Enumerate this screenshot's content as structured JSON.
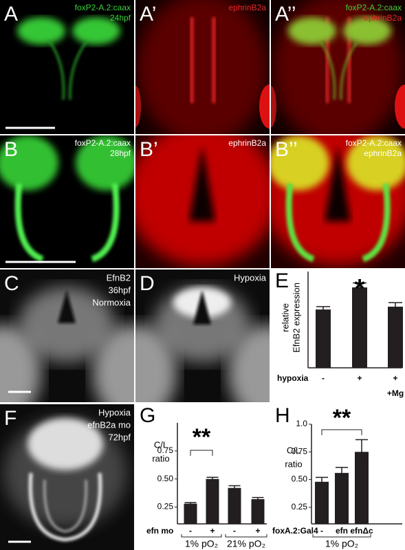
{
  "panels": [
    {
      "letter": "A",
      "text": [
        "foxP2-A.2:caax",
        "24hpf"
      ]
    },
    {
      "letter": "A’",
      "text": [
        "ephrinB2a"
      ]
    },
    {
      "letter": "A’’",
      "text": [
        "foxP2-A.2:caax",
        "ephrinB2a"
      ]
    },
    {
      "letter": "B",
      "text": [
        "foxP2-A.2:caax",
        "28hpf"
      ]
    },
    {
      "letter": "B’",
      "text": [
        "ephrinB2a"
      ]
    },
    {
      "letter": "B’’",
      "text": [
        "foxP2-A.2:caax",
        "ephrinB2a"
      ]
    },
    {
      "letter": "C",
      "text": [
        "EfnB2",
        "36hpf",
        "Normoxia"
      ]
    },
    {
      "letter": "D",
      "text": [
        "Hypoxia"
      ]
    },
    {
      "letter": "F",
      "text": [
        "Hypoxia",
        "efnB2a mo",
        "72hpf"
      ]
    }
  ],
  "chart_data": [
    {
      "type": "bar",
      "label": "E",
      "ylabel": [
        "relative",
        "EfnB2 expression"
      ],
      "xlabel": "hypoxia",
      "categories": [
        "-",
        "+",
        "+"
      ],
      "sublabels": [
        null,
        null,
        "+Mg"
      ],
      "values": [
        1.03,
        1.42,
        1.08
      ],
      "errors": [
        0.05,
        0.08,
        0.07
      ],
      "color": "#231f20",
      "ylim": [
        0,
        1.7
      ],
      "significance": {
        "label": "*",
        "between": [
          1
        ]
      }
    },
    {
      "type": "bar",
      "label": "G",
      "ylabel": [
        "C/L",
        "ratio"
      ],
      "xlabel": "efn mo",
      "categories": [
        "-",
        "+",
        "-",
        "+"
      ],
      "values": [
        0.28,
        0.5,
        0.42,
        0.32
      ],
      "errors": [
        0.01,
        0.015,
        0.02,
        0.015
      ],
      "color": "#231f20",
      "ylim": [
        0.1,
        1.0
      ],
      "yticks": [
        0.25,
        {
          "value": 0.5,
          "label": "0.50"
        },
        0.75
      ],
      "groups": [
        "1% pO₂",
        "21% pO₂"
      ],
      "significance": {
        "label": "**",
        "between": [
          0,
          1
        ]
      }
    },
    {
      "type": "bar",
      "label": "H",
      "ylabel": [
        "C/L",
        "ratio"
      ],
      "xlabel": "foxA.2:Gal4",
      "categories": [
        "-",
        "efn",
        "efnΔc"
      ],
      "values": [
        0.48,
        0.56,
        0.75
      ],
      "errors": [
        0.04,
        0.05,
        0.11
      ],
      "color": "#231f20",
      "ylim": [
        0.1,
        1.0
      ],
      "yticks": [
        0.25,
        {
          "value": 0.5,
          "label": "0.50"
        },
        0.75,
        {
          "value": 1,
          "label": "1.0"
        }
      ],
      "groups": [
        "1% pO₂"
      ],
      "significance": {
        "label": "**",
        "between": [
          0,
          2
        ]
      }
    }
  ]
}
